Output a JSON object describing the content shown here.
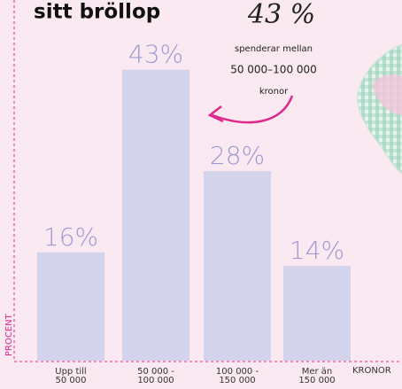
{
  "chart_data": {
    "type": "bar",
    "title": "sitt bröllop",
    "annotation": {
      "headline": "43 %",
      "lines": [
        "spenderar mellan",
        "50 000–100 000",
        "kronor"
      ]
    },
    "x_label": "KRONOR",
    "y_label": "PROCENT",
    "categories": [
      "Upp till\n50 000",
      "50 000 -\n100 000",
      "100 000 -\n150 000",
      "Mer än\n150 000"
    ],
    "values": [
      16,
      43,
      28,
      14
    ],
    "value_labels": [
      "16%",
      "43%",
      "28%",
      "14%"
    ],
    "color": "#d4d3ec",
    "ylim": [
      0,
      50
    ]
  }
}
